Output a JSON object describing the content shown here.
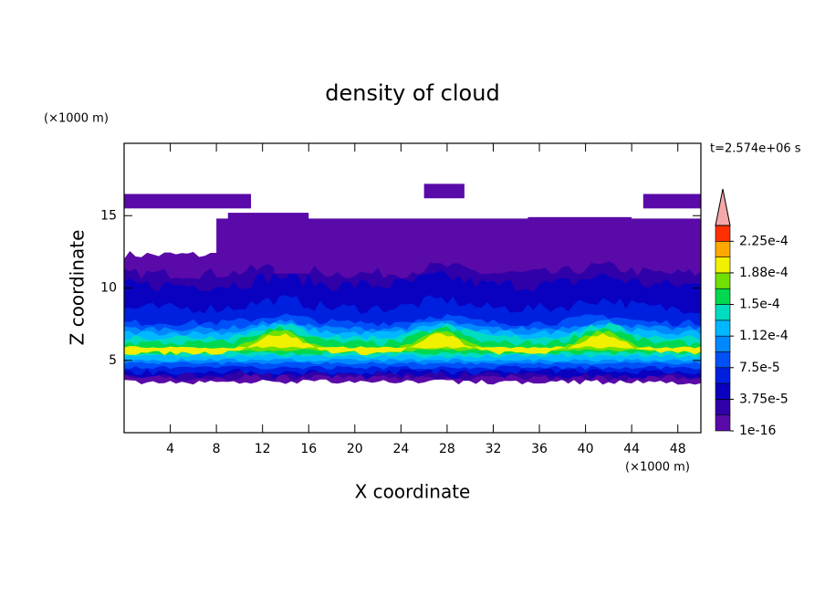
{
  "chart_data": {
    "type": "contour",
    "title": "density of cloud",
    "x_label": "X coordinate",
    "y_label": "Z coordinate",
    "x_unit": "(×1000 m)",
    "y_unit": "(×1000 m)",
    "annotation": "t=2.574e+06 s",
    "xlim": [
      0,
      50
    ],
    "xticks": [
      4,
      8,
      12,
      16,
      20,
      24,
      28,
      32,
      36,
      40,
      44,
      48
    ],
    "ylim": [
      0,
      20
    ],
    "yticks": [
      5,
      10,
      15
    ],
    "colorbar": {
      "clim": [
        0,
        0.00024375
      ],
      "ticks": [
        1e-16,
        {
          "value": 3.75e-05,
          "label": "3.75e-5"
        },
        {
          "value": 7.5e-05,
          "label": "7.5e-5"
        },
        {
          "value": 0.0001125,
          "label": "1.12e-4"
        },
        {
          "value": 0.00015,
          "label": "1.5e-4"
        },
        {
          "value": 0.0001875,
          "label": "1.88e-4"
        },
        {
          "value": 0.000225,
          "label": "2.25e-4"
        }
      ],
      "colors": [
        "#5a0aa8",
        "#3000a8",
        "#0a00c0",
        "#0020e0",
        "#0050f8",
        "#0088ff",
        "#00b8ff",
        "#00dcc0",
        "#00d850",
        "#70e000",
        "#f0f000",
        "#ffa800",
        "#ff3000"
      ],
      "over_color": "#f4a8a8"
    }
  }
}
